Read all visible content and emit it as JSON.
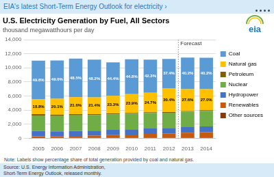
{
  "chart_data": {
    "type": "bar",
    "stacked": true,
    "header": "EIA's latest Short-Term Energy Outlook for electricity ›",
    "title": "U.S. Electricity Generation by Fuel, All Sectors",
    "subtitle": "thousand megawatthours per day",
    "categories": [
      "2005",
      "2006",
      "2007",
      "2008",
      "2009",
      "2010",
      "2011",
      "2012",
      "2013",
      "2014"
    ],
    "series": [
      {
        "name": "Coal",
        "color": "#5B9BD5",
        "values": [
          5500,
          5450,
          5480,
          5350,
          4750,
          4950,
          4700,
          4150,
          4500,
          4450
        ],
        "labels": [
          "49.6%",
          "49.0%",
          "48.5%",
          "48.2%",
          "44.4%",
          "44.8%",
          "42.3%",
          "37.4%",
          "40.2%",
          "40.2%"
        ]
      },
      {
        "name": "Natural gas",
        "color": "#FFC000",
        "values": [
          2090,
          2240,
          2400,
          2380,
          2490,
          2660,
          2760,
          3380,
          3080,
          2990
        ],
        "labels": [
          "18.8%",
          "20.1%",
          "21.6%",
          "21.4%",
          "23.3%",
          "23.9%",
          "24.7%",
          "30.4%",
          "27.6%",
          "27.0%"
        ]
      },
      {
        "name": "Petroleum",
        "color": "#7F6000",
        "values": [
          200,
          190,
          170,
          155,
          130,
          120,
          110,
          95,
          90,
          85
        ]
      },
      {
        "name": "Nuclear",
        "color": "#70AD47",
        "values": [
          2200,
          2180,
          2200,
          2200,
          2200,
          2200,
          2200,
          2170,
          2200,
          2200
        ]
      },
      {
        "name": "Hydropower",
        "color": "#4472C4",
        "values": [
          770,
          700,
          730,
          700,
          760,
          760,
          790,
          760,
          800,
          820
        ]
      },
      {
        "name": "Renewables",
        "color": "#C55A11",
        "values": [
          220,
          240,
          270,
          310,
          380,
          450,
          530,
          620,
          700,
          780
        ]
      },
      {
        "name": "Other sources",
        "color": "#833C0B",
        "values": [
          50,
          55,
          60,
          65,
          65,
          70,
          80,
          85,
          90,
          95
        ]
      }
    ],
    "ylim": [
      0,
      14000
    ],
    "yticks": [
      0,
      {
        "value": 2000,
        "label": "2,000"
      },
      {
        "value": 4000,
        "label": "4,000"
      },
      {
        "value": 6000,
        "label": "6,000"
      },
      {
        "value": 8000,
        "label": "8,000"
      },
      {
        "value": 10000,
        "label": "10,000"
      },
      {
        "value": 12000,
        "label": "12,000"
      },
      {
        "value": 14000,
        "label": "14,000"
      }
    ],
    "grid": true,
    "legend": "right",
    "annotations": [
      {
        "text": "Forecast",
        "x": "2013"
      }
    ],
    "note": "Note: Labels show percentage share of total generation provided by coal and natural gas.",
    "source": [
      "Source: U.S. Energy Information Administration,",
      "Short-Term Energy Outlook, released monthly."
    ],
    "logo": "eia"
  }
}
